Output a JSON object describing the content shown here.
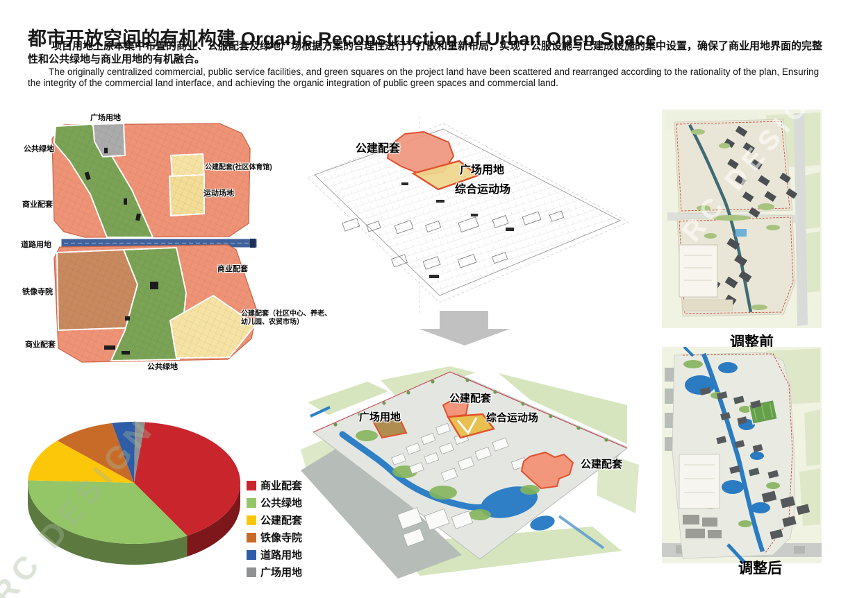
{
  "header": {
    "title_zh": "都市开放空间的有机构建",
    "title_en": "Organic Reconstruction of Urban Open Space",
    "para_zh": "项目用地上原本集中布置的商业、公服配套及绿地广场根据方案的合理性进行了打散和重新布局，实现了公服设施与已建成设施的集中设置，确保了商业用地界面的完整性和公共绿地与商业用地的有机融合。",
    "para_en": "The originally centralized commercial, public service facilities, and green squares on the project land have been scattered and rearranged according to the rationality of the plan, Ensuring the integrity of the commercial land interface, and achieving the organic integration of public green spaces and commercial land."
  },
  "watermark_text": "RC DESIGN",
  "land_use_map": {
    "labels": {
      "plaza": "广场用地",
      "green_top": "公共绿地",
      "public_gym": "公建配套(社区体育馆)",
      "sports": "运动场地",
      "commercial_left": "商业配套",
      "road": "道路用地",
      "commercial_right": "商业配套",
      "temple": "铁像寺院",
      "public_center_line1": "公建配套（社区中心、养老、",
      "public_center_line2": "幼儿园、农贸市场）",
      "commercial_bottom": "商业配套",
      "green_bottom": "公共绿地"
    }
  },
  "sketch_diagram": {
    "labels": {
      "public": "公建配套",
      "plaza": "广场用地",
      "sports": "综合运动场"
    }
  },
  "rendered_plan": {
    "labels": {
      "public_top": "公建配套",
      "sports": "综合运动场",
      "plaza": "广场用地",
      "public_right": "公建配套"
    }
  },
  "before_after": {
    "before_label": "调整前",
    "after_label": "调整后"
  },
  "chart_data": {
    "type": "pie",
    "style": "3d",
    "legend_position": "right",
    "categories": [
      "商业配套",
      "公共绿地",
      "公建配套",
      "铁像寺院",
      "道路用地",
      "广场用地"
    ],
    "values": [
      40,
      34,
      11.5,
      9.5,
      3.5,
      1.5
    ],
    "colors": [
      "#C9252C",
      "#94C567",
      "#FCC708",
      "#C96B28",
      "#2E5CA6",
      "#8E9092"
    ],
    "start_angle_deg": 6,
    "unit": "percent"
  }
}
